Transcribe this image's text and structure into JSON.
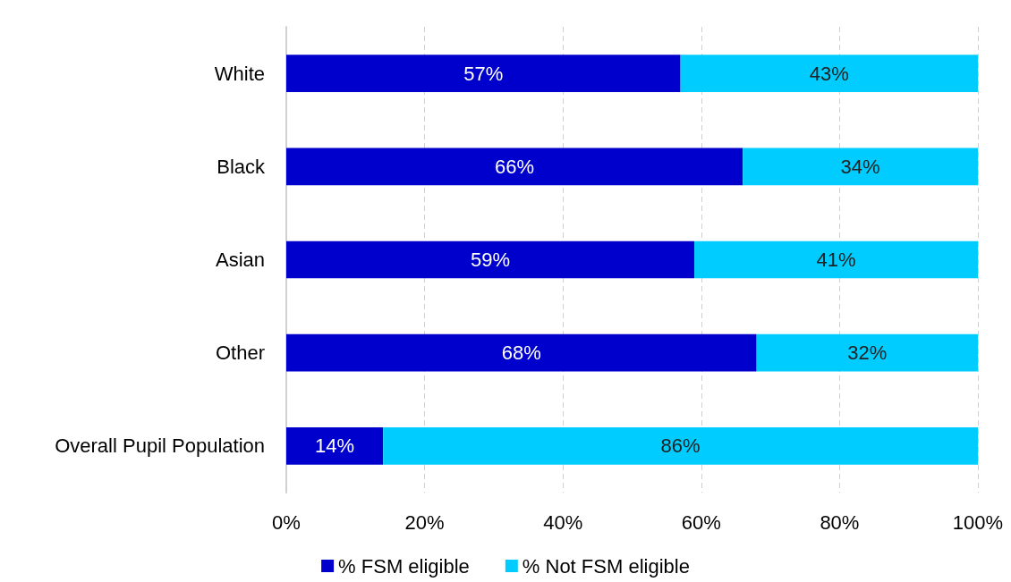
{
  "chart_data": {
    "type": "bar",
    "orientation": "horizontal",
    "stacked": true,
    "categories": [
      "White",
      "Black",
      "Asian",
      "Other",
      "Overall Pupil Population"
    ],
    "series": [
      {
        "name": "% FSM eligible",
        "color": "#0000cc",
        "values": [
          57,
          66,
          59,
          68,
          14
        ],
        "value_labels": [
          "57%",
          "66%",
          "59%",
          "68%",
          "14%"
        ]
      },
      {
        "name": "% Not FSM eligible",
        "color": "#00ccff",
        "values": [
          43,
          34,
          41,
          32,
          86
        ],
        "value_labels": [
          "43%",
          "34%",
          "41%",
          "32%",
          "86%"
        ]
      }
    ],
    "xlim": [
      0,
      100
    ],
    "xticks": [
      {
        "value": 0,
        "label": "0%"
      },
      {
        "value": 20,
        "label": "20%"
      },
      {
        "value": 40,
        "label": "40%"
      },
      {
        "value": 60,
        "label": "60%"
      },
      {
        "value": 80,
        "label": "80%"
      },
      {
        "value": 100,
        "label": "100%"
      }
    ],
    "grid": "x",
    "legend": "bottom"
  }
}
